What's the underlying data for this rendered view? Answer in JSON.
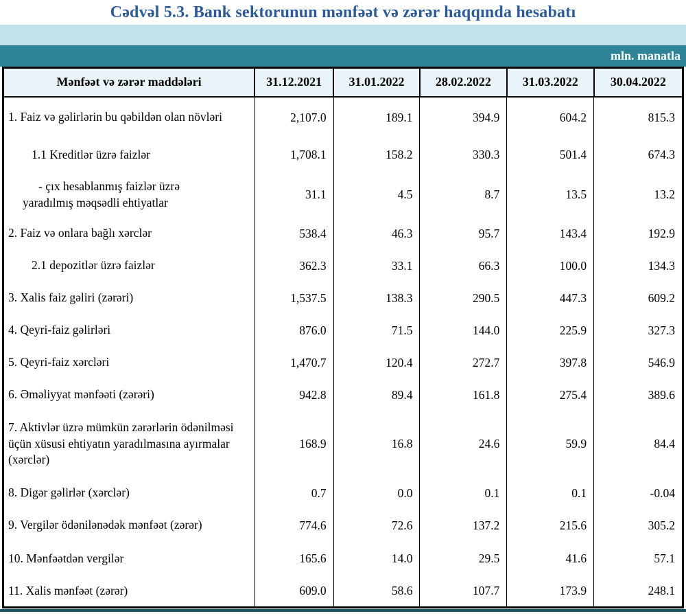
{
  "page": {
    "title": "Cədvəl 5.3. Bank sektorunun mənfəət və zərər haqqında hesabatı",
    "unit_label": "mln. manatla"
  },
  "colors": {
    "title_text": "#2a5b9c",
    "band_light_blue": "#c3e1eb",
    "band_teal": "#2f8396",
    "header_row_bg": "#eaf4f8",
    "table_border": "#000000",
    "bottom_strip": "#1b5564"
  },
  "table": {
    "columns": [
      "Mənfəət və zərər maddələri",
      "31.12.2021",
      "31.01.2022",
      "28.02.2022",
      "31.03.2022",
      "30.04.2022"
    ],
    "rows": [
      {
        "label": "1. Faiz və gəlirlərin bu qəbildən olan növləri",
        "values": [
          "2,107.0",
          "189.1",
          "394.9",
          "604.2",
          "815.3"
        ]
      },
      {
        "label": "1.1 Kreditlər üzrə faizlər",
        "values": [
          "1,708.1",
          "158.2",
          "330.3",
          "501.4",
          "674.3"
        ]
      },
      {
        "label": "-  çıx hesablanmış faizlər üzrə",
        "label2": "yaradılmış məqsədli ehtiyatlar",
        "values": [
          "31.1",
          "4.5",
          "8.7",
          "13.5",
          "13.2"
        ]
      },
      {
        "label": "2. Faiz və onlara bağlı xərclər",
        "values": [
          "538.4",
          "46.3",
          "95.7",
          "143.4",
          "192.9"
        ]
      },
      {
        "label": "2.1 depozitlər üzrə faizlər",
        "values": [
          "362.3",
          "33.1",
          "66.3",
          "100.0",
          "134.3"
        ]
      },
      {
        "label": "3. Xalis faiz gəliri (zərəri)",
        "values": [
          "1,537.5",
          "138.3",
          "290.5",
          "447.3",
          "609.2"
        ]
      },
      {
        "label": "4. Qeyri-faiz gəlirləri",
        "values": [
          "876.0",
          "71.5",
          "144.0",
          "225.9",
          "327.3"
        ]
      },
      {
        "label": "5. Qeyri-faiz xərcləri",
        "values": [
          "1,470.7",
          "120.4",
          "272.7",
          "397.8",
          "546.9"
        ]
      },
      {
        "label": "6. Əməliyyat mənfəəti (zərəri)",
        "values": [
          "942.8",
          "89.4",
          "161.8",
          "275.4",
          "389.6"
        ]
      },
      {
        "label": "7. Aktivlər üzrə mümkün zərərlərin ödənilməsi üçün xüsusi ehtiyatın yaradılmasına ayırmalar (xərclər)",
        "values": [
          "168.9",
          "16.8",
          "24.6",
          "59.9",
          "84.4"
        ]
      },
      {
        "label": "8. Digər gəlirlər (xərclər)",
        "values": [
          "0.7",
          "0.0",
          "0.1",
          "0.1",
          "-0.04"
        ]
      },
      {
        "label": "9. Vergilər ödənilənədək mənfəət (zərər)",
        "values": [
          "774.6",
          "72.6",
          "137.2",
          "215.6",
          "305.2"
        ]
      },
      {
        "label": "10. Mənfəətdən vergilər",
        "values": [
          "165.6",
          "14.0",
          "29.5",
          "41.6",
          "57.1"
        ]
      },
      {
        "label": "11. Xalis mənfəət (zərər)",
        "values": [
          "609.0",
          "58.6",
          "107.7",
          "173.9",
          "248.1"
        ]
      }
    ]
  }
}
